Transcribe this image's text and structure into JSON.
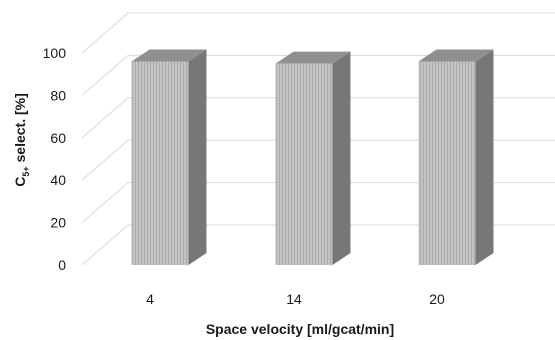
{
  "chart_data": {
    "type": "bar",
    "style": "3d",
    "categories": [
      "4",
      "14",
      "20"
    ],
    "values": [
      96,
      95,
      96
    ],
    "title": "",
    "xlabel": "Space velocity [ml/gcat/min]",
    "ylabel": {
      "main": "C",
      "sub": "5+",
      "rest": " select. [%]"
    },
    "ylim": [
      0,
      100
    ],
    "yticks": [
      "0",
      "20",
      "40",
      "60",
      "80",
      "100"
    ],
    "grid": true,
    "legend": "none",
    "colors": {
      "bar_front": "#c4c4c4",
      "bar_front_stripe": "#ababab",
      "bar_side": "#777777",
      "bar_top": "#8f8f8f",
      "grid": "#d9d9d9"
    }
  }
}
